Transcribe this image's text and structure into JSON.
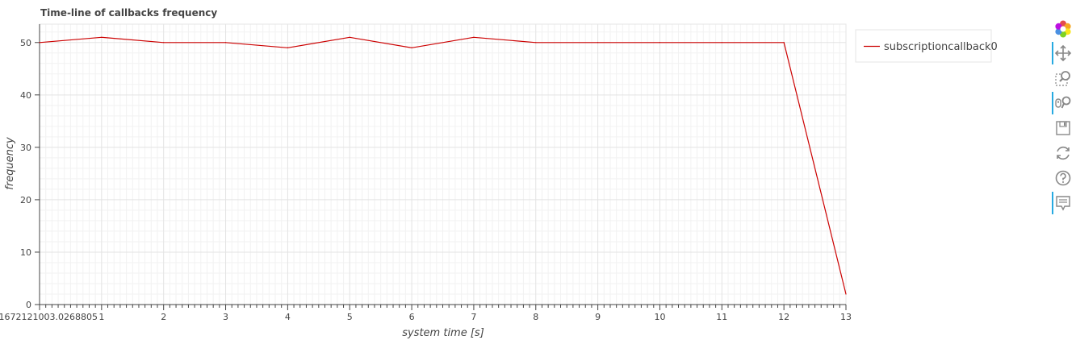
{
  "chart_data": {
    "type": "line",
    "title": "Time-line of callbacks frequency",
    "xlabel": "system time [s]",
    "ylabel": "frequency",
    "xlim": [
      0,
      13
    ],
    "ylim": [
      0,
      53.5
    ],
    "grid": true,
    "x_ticks": [
      "0+1672121003.0268805",
      "1",
      "2",
      "3",
      "4",
      "5",
      "6",
      "7",
      "8",
      "9",
      "10",
      "11",
      "12",
      "13"
    ],
    "y_ticks": [
      0,
      10,
      20,
      30,
      40,
      50
    ],
    "legend_position": "right",
    "series": [
      {
        "name": "subscriptioncallback0",
        "color": "#cc0000",
        "x": [
          0,
          1,
          2,
          3,
          4,
          5,
          6,
          7,
          8,
          9,
          10,
          11,
          12,
          13
        ],
        "y": [
          50,
          51,
          50,
          50,
          49,
          51,
          49,
          51,
          50,
          50,
          50,
          50,
          50,
          2
        ]
      }
    ]
  },
  "toolbar": {
    "tools": [
      {
        "name": "bokeh-logo",
        "active": false
      },
      {
        "name": "pan-tool",
        "active": true
      },
      {
        "name": "box-zoom-tool",
        "active": false
      },
      {
        "name": "wheel-zoom-tool",
        "active": true
      },
      {
        "name": "save-tool",
        "active": false
      },
      {
        "name": "reset-tool",
        "active": false
      },
      {
        "name": "help-tool",
        "active": false
      },
      {
        "name": "hover-tool",
        "active": true
      }
    ]
  }
}
